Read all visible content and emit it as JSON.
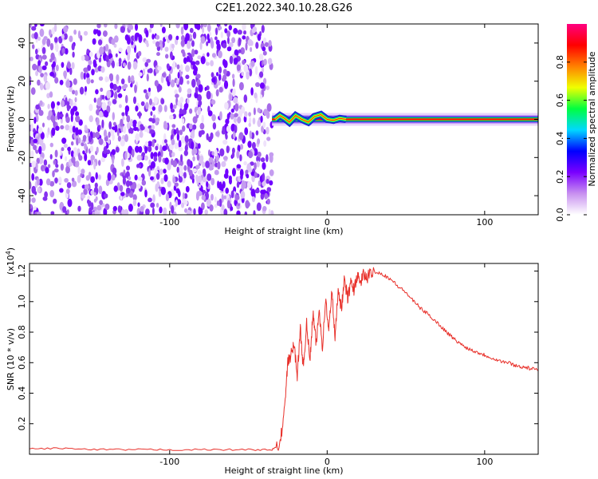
{
  "title": "C2E1.2022.340.10.28.G26",
  "chart_data": [
    {
      "type": "heatmap",
      "name": "spectrogram",
      "xlabel": "Height of straight line (km)",
      "ylabel": "Frequency (Hz)",
      "xlim": [
        -189,
        134
      ],
      "ylim": [
        -50,
        50
      ],
      "xticks": [
        -100,
        0,
        100
      ],
      "yticks": [
        -40,
        -20,
        0,
        20,
        40
      ],
      "noise_region_x": [
        -189,
        -35
      ],
      "signal_region_x": [
        -35,
        134
      ],
      "signal_frequency": 0,
      "colorbar": {
        "label": "Normalized spectral amplitude",
        "range": [
          0.0,
          1.0
        ],
        "ticks": [
          0.0,
          0.2,
          0.4,
          0.6,
          0.8
        ],
        "tick_labels": [
          "0.0",
          "0.2",
          "0.4",
          "0.6",
          "0.8"
        ],
        "colors": [
          "#ffffff",
          "#c890f0",
          "#7a00ff",
          "#0000ff",
          "#00d8ff",
          "#00ff40",
          "#f0ff00",
          "#ff8000",
          "#ff0000",
          "#ff0080"
        ]
      }
    },
    {
      "type": "line",
      "name": "snr",
      "xlabel": "Height of straight line (km)",
      "ylabel": "SNR (10 * v/v)",
      "y_multiplier": "(x10",
      "y_multiplier_exp": "4",
      "y_multiplier_close": ")",
      "xlim": [
        -189,
        134
      ],
      "ylim": [
        0,
        1.25
      ],
      "xticks": [
        -100,
        0,
        100
      ],
      "yticks": [
        0.2,
        0.4,
        0.6,
        0.8,
        1.0,
        1.2
      ],
      "ytick_labels": [
        "0.2",
        "0.4",
        "0.6",
        "0.8",
        "1.0",
        "1.2"
      ],
      "color": "#e8302a",
      "x": [
        -189,
        -170,
        -150,
        -130,
        -110,
        -90,
        -70,
        -50,
        -35,
        -30,
        -27,
        -25,
        -23,
        -21,
        -19,
        -17,
        -15,
        -13,
        -11,
        -9,
        -7,
        -5,
        -3,
        -1,
        1,
        3,
        5,
        7,
        9,
        11,
        13,
        15,
        17,
        19,
        21,
        23,
        25,
        27,
        30,
        35,
        40,
        45,
        50,
        55,
        60,
        65,
        70,
        75,
        80,
        85,
        90,
        95,
        100,
        105,
        110,
        115,
        120,
        125,
        130,
        134
      ],
      "y": [
        0.035,
        0.04,
        0.03,
        0.03,
        0.03,
        0.03,
        0.03,
        0.03,
        0.03,
        0.06,
        0.3,
        0.6,
        0.65,
        0.72,
        0.52,
        0.82,
        0.55,
        0.88,
        0.6,
        0.93,
        0.72,
        0.95,
        0.7,
        1.02,
        0.8,
        1.08,
        0.75,
        1.1,
        0.95,
        1.15,
        1.02,
        1.12,
        1.08,
        1.17,
        1.12,
        1.18,
        1.15,
        1.18,
        1.2,
        1.18,
        1.15,
        1.1,
        1.06,
        1.0,
        0.95,
        0.91,
        0.86,
        0.81,
        0.76,
        0.72,
        0.69,
        0.67,
        0.65,
        0.63,
        0.61,
        0.6,
        0.58,
        0.57,
        0.56,
        0.55
      ]
    }
  ]
}
